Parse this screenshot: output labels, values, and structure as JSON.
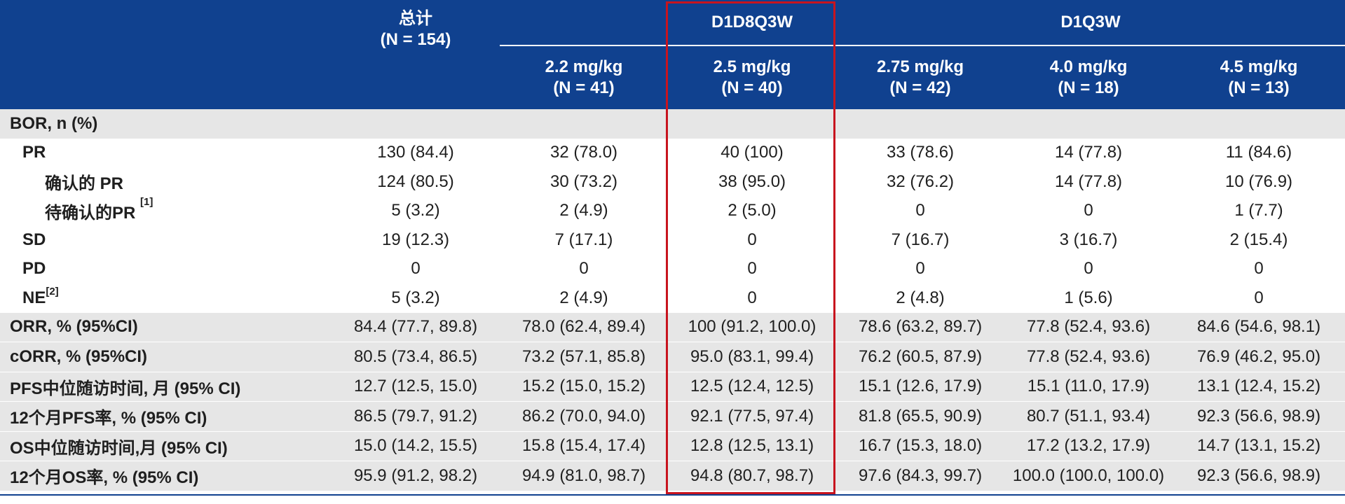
{
  "header": {
    "total_label": "总计",
    "total_n": "(N = 154)",
    "groups": [
      {
        "label": "D1D8Q3W"
      },
      {
        "label": "D1Q3W"
      }
    ],
    "columns": [
      {
        "dose": "2.2 mg/kg",
        "n": "(N = 41)"
      },
      {
        "dose": "2.5 mg/kg",
        "n": "(N = 40)"
      },
      {
        "dose": "2.75 mg/kg",
        "n": "(N = 42)"
      },
      {
        "dose": "4.0 mg/kg",
        "n": "(N = 18)"
      },
      {
        "dose": "4.5 mg/kg",
        "n": "(N = 13)"
      }
    ]
  },
  "rows": [
    {
      "label": "BOR, n (%)",
      "values": [
        "",
        "",
        "",
        "",
        "",
        ""
      ]
    },
    {
      "label": "PR",
      "values": [
        "130 (84.4)",
        "32 (78.0)",
        "40 (100)",
        "33 (78.6)",
        "14 (77.8)",
        "11 (84.6)"
      ]
    },
    {
      "label": "确认的 PR",
      "values": [
        "124 (80.5)",
        "30 (73.2)",
        "38 (95.0)",
        "32 (76.2)",
        "14 (77.8)",
        "10 (76.9)"
      ]
    },
    {
      "label": "待确认的PR",
      "note": "[1]",
      "values": [
        "5 (3.2)",
        "2 (4.9)",
        "2 (5.0)",
        "0",
        "0",
        "1 (7.7)"
      ]
    },
    {
      "label": "SD",
      "values": [
        "19 (12.3)",
        "7 (17.1)",
        "0",
        "7 (16.7)",
        "3 (16.7)",
        "2 (15.4)"
      ]
    },
    {
      "label": "PD",
      "values": [
        "0",
        "0",
        "0",
        "0",
        "0",
        "0"
      ]
    },
    {
      "label": "NE",
      "note": "[2]",
      "values": [
        "5 (3.2)",
        "2 (4.9)",
        "0",
        "2 (4.8)",
        "1 (5.6)",
        "0"
      ]
    },
    {
      "label": "ORR, % (95%CI)",
      "values": [
        "84.4 (77.7, 89.8)",
        "78.0 (62.4, 89.4)",
        "100 (91.2, 100.0)",
        "78.6 (63.2, 89.7)",
        "77.8 (52.4, 93.6)",
        "84.6 (54.6, 98.1)"
      ]
    },
    {
      "label": "cORR, % (95%CI)",
      "values": [
        "80.5 (73.4, 86.5)",
        "73.2 (57.1, 85.8)",
        "95.0 (83.1, 99.4)",
        "76.2 (60.5, 87.9)",
        "77.8 (52.4, 93.6)",
        "76.9 (46.2, 95.0)"
      ]
    },
    {
      "label": "PFS中位随访时间, 月 (95% CI)",
      "values": [
        "12.7 (12.5, 15.0)",
        "15.2 (15.0, 15.2)",
        "12.5 (12.4, 12.5)",
        "15.1 (12.6, 17.9)",
        "15.1 (11.0, 17.9)",
        "13.1 (12.4, 15.2)"
      ]
    },
    {
      "label": "12个月PFS率, % (95% CI)",
      "values": [
        "86.5 (79.7, 91.2)",
        "86.2 (70.0, 94.0)",
        "92.1 (77.5, 97.4)",
        "81.8 (65.5, 90.9)",
        "80.7 (51.1, 93.4)",
        "92.3 (56.6, 98.9)"
      ]
    },
    {
      "label": "OS中位随访时间,月 (95% CI)",
      "values": [
        "15.0 (14.2, 15.5)",
        "15.8 (15.4, 17.4)",
        "12.8 (12.5, 13.1)",
        "16.7 (15.3, 18.0)",
        "17.2 (13.2, 17.9)",
        "14.7 (13.1, 15.2)"
      ]
    },
    {
      "label": "12个月OS率, % (95% CI)",
      "values": [
        "95.9 (91.2, 98.2)",
        "94.9 (81.0, 98.7)",
        "94.8 (80.7, 98.7)",
        "97.6 (84.3, 99.7)",
        "100.0 (100.0, 100.0)",
        "92.3 (56.6, 98.9)"
      ]
    }
  ],
  "colors": {
    "header_bg": "#10418f",
    "header_text": "#ffffff",
    "shade": "#e6e6e6",
    "highlight_border": "#c8141e"
  }
}
